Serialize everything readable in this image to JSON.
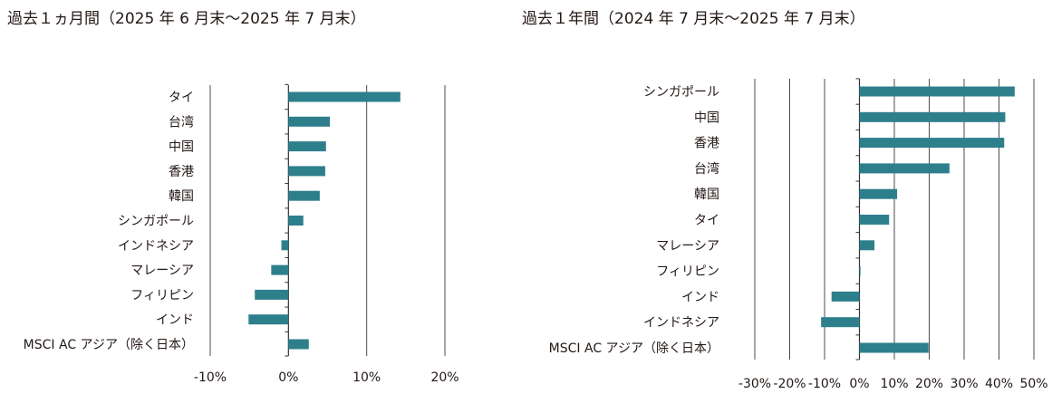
{
  "colors": {
    "bar": "#2e7f8c",
    "axis": "#333333",
    "grid": "#4d4d4d",
    "text": "#231815"
  },
  "chart_data": [
    {
      "type": "bar",
      "orientation": "horizontal",
      "title": "過去１ヵ月間（2025 年 6 月末〜2025 年 7 月末）",
      "categories": [
        "タイ",
        "台湾",
        "中国",
        "香港",
        "韓国",
        "シンガポール",
        "インドネシア",
        "マレーシア",
        "フィリピン",
        "インド",
        "MSCI AC アジア（除く日本）"
      ],
      "values": [
        14.3,
        5.3,
        4.8,
        4.7,
        4.0,
        1.9,
        -0.9,
        -2.2,
        -4.3,
        -5.1,
        2.6
      ],
      "xlim": [
        -10,
        20
      ],
      "xticks": [
        -10,
        0,
        10,
        20
      ],
      "xtick_labels": [
        "-10%",
        "0%",
        "10%",
        "20%"
      ],
      "grid": true
    },
    {
      "type": "bar",
      "orientation": "horizontal",
      "title": "過去１年間（2024 年 7 月末〜2025 年 7 月末）",
      "categories": [
        "シンガポール",
        "中国",
        "香港",
        "台湾",
        "韓国",
        "タイ",
        "マレーシア",
        "フィリピン",
        "インド",
        "インドネシア",
        "MSCI AC アジア（除く日本）"
      ],
      "values": [
        44.5,
        41.8,
        41.5,
        25.8,
        10.8,
        8.5,
        4.3,
        0.3,
        -8.0,
        -11.0,
        19.8
      ],
      "xlim": [
        -30,
        50
      ],
      "xticks": [
        -30,
        -20,
        -10,
        0,
        10,
        20,
        30,
        40,
        50
      ],
      "xtick_labels": [
        "-30%",
        "-20%",
        "-10%",
        "0%",
        "10%",
        "20%",
        "30%",
        "40%",
        "50%"
      ],
      "grid": true
    }
  ]
}
